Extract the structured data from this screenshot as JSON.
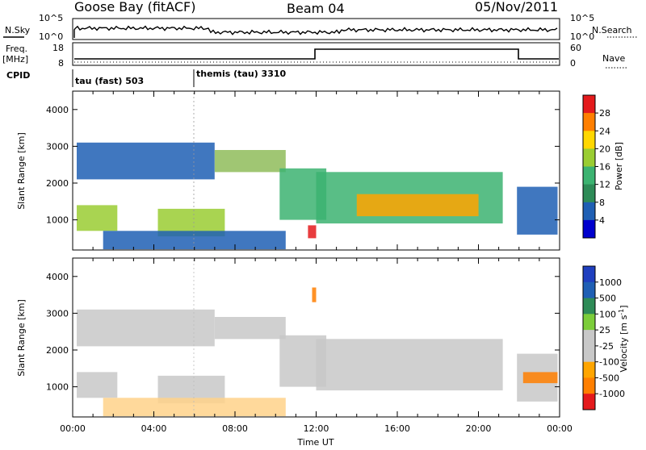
{
  "header": {
    "station": "Goose Bay (fitACF)",
    "beam": "Beam 04",
    "date": "05/Nov/2011"
  },
  "top_panels": {
    "nsky_label": "N.Sky",
    "nsearch_label": "N.Search",
    "freq_label_line1": "Freq.",
    "freq_label_line2": "[MHz]",
    "nave_label": "Nave",
    "cpid_label": "CPID",
    "noise_ticks": [
      "10^5",
      "10^0"
    ],
    "freq_ticks": [
      "18",
      "8"
    ],
    "nave_ticks": [
      "60",
      "0"
    ],
    "cpid_modes": [
      "tau (fast) 503",
      "themis (tau) 3310"
    ]
  },
  "chart_data": [
    {
      "type": "heatmap",
      "title": "Power",
      "xlabel": "",
      "ylabel": "Slant Range [km]",
      "x_range_hours": [
        0,
        24
      ],
      "ylim": [
        180,
        4500
      ],
      "y_ticks": [
        "4000",
        "3000",
        "2000",
        "1000"
      ],
      "colorbar_label": "Power [dB]",
      "colorbar_ticks": [
        "28",
        "24",
        "20",
        "16",
        "12",
        "8",
        "4"
      ],
      "colorbar_colors": [
        "#e41a1c",
        "#ff7f00",
        "#ffd700",
        "#9acd32",
        "#3cb371",
        "#2e8b57",
        "#1f5fb4",
        "#0000cd"
      ],
      "features": [
        {
          "name": "band-a",
          "x": [
            0.2,
            7.0
          ],
          "y": [
            2100,
            3100
          ],
          "color": "#1f5fb4"
        },
        {
          "name": "band-b",
          "x": [
            7.0,
            10.5
          ],
          "y": [
            2300,
            2900
          ],
          "color": "#8fbc5a"
        },
        {
          "name": "band-c",
          "x": [
            10.2,
            12.5
          ],
          "y": [
            1000,
            2400
          ],
          "color": "#3cb371"
        },
        {
          "name": "band-d",
          "x": [
            12.0,
            21.2
          ],
          "y": [
            900,
            2300
          ],
          "color": "#3cb371"
        },
        {
          "name": "band-e",
          "x": [
            14.0,
            20.0
          ],
          "y": [
            1100,
            1700
          ],
          "color": "#ffa500"
        },
        {
          "name": "band-f",
          "x": [
            21.9,
            23.9
          ],
          "y": [
            600,
            1900
          ],
          "color": "#1f5fb4"
        },
        {
          "name": "band-g",
          "x": [
            0.2,
            2.2
          ],
          "y": [
            700,
            1400
          ],
          "color": "#9acd32"
        },
        {
          "name": "band-h",
          "x": [
            4.2,
            7.5
          ],
          "y": [
            550,
            1300
          ],
          "color": "#9acd32"
        },
        {
          "name": "band-i",
          "x": [
            1.5,
            10.5
          ],
          "y": [
            200,
            700
          ],
          "color": "#1f5fb4"
        },
        {
          "name": "band-j",
          "x": [
            11.6,
            12.0
          ],
          "y": [
            500,
            850
          ],
          "color": "#e41a1c"
        }
      ]
    },
    {
      "type": "heatmap",
      "title": "Velocity",
      "xlabel": "Time UT",
      "ylabel": "Slant Range [km]",
      "x_range_hours": [
        0,
        24
      ],
      "ylim": [
        180,
        4500
      ],
      "y_ticks": [
        "4000",
        "3000",
        "2000",
        "1000"
      ],
      "x_ticks": [
        "00:00",
        "04:00",
        "08:00",
        "12:00",
        "16:00",
        "20:00",
        "00:00"
      ],
      "colorbar_label": "Velocity [m s",
      "colorbar_label_sup": "-1",
      "colorbar_label_end": "]",
      "colorbar_ticks": [
        "1000",
        "500",
        "100",
        "25",
        "-25",
        "-100",
        "-500",
        "-1000"
      ],
      "colorbar_colors": [
        "#1f3fbf",
        "#1f5fb4",
        "#2e8b57",
        "#7ccd3a",
        "#c8c8c8",
        "#c8c8c8",
        "#ffa500",
        "#ff7f00",
        "#e41a1c"
      ],
      "features": [
        {
          "name": "band-a",
          "x": [
            0.2,
            7.0
          ],
          "y": [
            2100,
            3100
          ],
          "color": "#c8c8c8"
        },
        {
          "name": "band-b",
          "x": [
            7.0,
            10.5
          ],
          "y": [
            2300,
            2900
          ],
          "color": "#c8c8c8"
        },
        {
          "name": "band-c",
          "x": [
            10.2,
            12.5
          ],
          "y": [
            1000,
            2400
          ],
          "color": "#c8c8c8"
        },
        {
          "name": "band-d",
          "x": [
            12.0,
            21.2
          ],
          "y": [
            900,
            2300
          ],
          "color": "#c8c8c8"
        },
        {
          "name": "band-f",
          "x": [
            21.9,
            23.9
          ],
          "y": [
            600,
            1900
          ],
          "color": "#c8c8c8"
        },
        {
          "name": "band-k",
          "x": [
            22.2,
            23.9
          ],
          "y": [
            1100,
            1400
          ],
          "color": "#ff7f00"
        },
        {
          "name": "band-g",
          "x": [
            0.2,
            2.2
          ],
          "y": [
            700,
            1400
          ],
          "color": "#c8c8c8"
        },
        {
          "name": "band-h",
          "x": [
            4.2,
            7.5
          ],
          "y": [
            550,
            1300
          ],
          "color": "#c8c8c8"
        },
        {
          "name": "band-i",
          "x": [
            1.5,
            10.5
          ],
          "y": [
            200,
            700
          ],
          "color": "#ffd28a"
        },
        {
          "name": "band-l",
          "x": [
            11.8,
            12.0
          ],
          "y": [
            3300,
            3700
          ],
          "color": "#ff7f00"
        }
      ]
    }
  ]
}
